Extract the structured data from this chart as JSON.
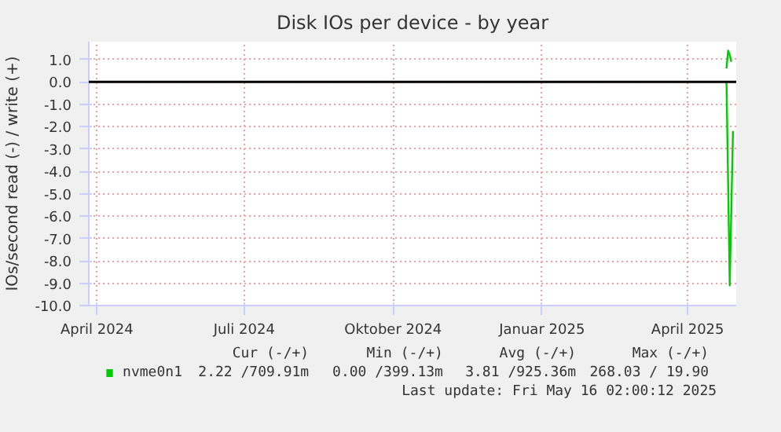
{
  "chart_data": {
    "type": "line",
    "title": "Disk IOs per device - by year",
    "ylabel": "IOs/second read (-) / write (+)",
    "series": [
      {
        "name": "nvme0n1",
        "color": "#00cc00",
        "x": [
          "2025-04-25",
          "2025-04-27",
          "2025-04-29"
        ],
        "values": [
          0,
          -9.1,
          -2.2
        ]
      },
      {
        "color": "#00cc00",
        "x": [
          "2025-04-25",
          "2025-04-26",
          "2025-04-27",
          "2025-04-28"
        ],
        "values": [
          0.6,
          1.4,
          1.2,
          0.9
        ]
      }
    ],
    "xlim": [
      "2024-03-27",
      "2025-05-01"
    ],
    "xticks": [
      {
        "value": "2024-04-01",
        "label": "April 2024"
      },
      {
        "value": "2024-07-01",
        "label": "Juli 2024"
      },
      {
        "value": "2024-10-01",
        "label": "Oktober 2024"
      },
      {
        "value": "2025-01-01",
        "label": "Januar 2025"
      },
      {
        "value": "2025-04-01",
        "label": "April 2025"
      }
    ],
    "ylim": [
      -10,
      1.8
    ],
    "yticks": [
      {
        "value": -10,
        "label": "-10.0"
      },
      {
        "value": -9,
        "label": "-9.0"
      },
      {
        "value": -8,
        "label": "-8.0"
      },
      {
        "value": -7,
        "label": "-7.0"
      },
      {
        "value": -6,
        "label": "-6.0"
      },
      {
        "value": -5,
        "label": "-5.0"
      },
      {
        "value": -4,
        "label": "-4.0"
      },
      {
        "value": -3,
        "label": "-3.0"
      },
      {
        "value": -2,
        "label": "-2.0"
      },
      {
        "value": -1,
        "label": "-1.0"
      },
      {
        "value": 0,
        "label": "0.0"
      },
      {
        "value": 1,
        "label": "1.0"
      }
    ],
    "ref_lines": [
      {
        "axis": "y",
        "value": 0,
        "color": "#000000"
      }
    ],
    "grid": true,
    "legend": "bottom",
    "marker": "none",
    "line_style": "solid",
    "annotations": [
      "Cur (-/+)",
      "Min (-/+)",
      "Avg (-/+)",
      "Max (-/+)",
      "2.22 /709.91m",
      "0.00 /399.13m",
      "3.81 /925.36m",
      "268.03 / 19.90",
      "Last update: Fri May 16 02:00:12 2025"
    ]
  }
}
